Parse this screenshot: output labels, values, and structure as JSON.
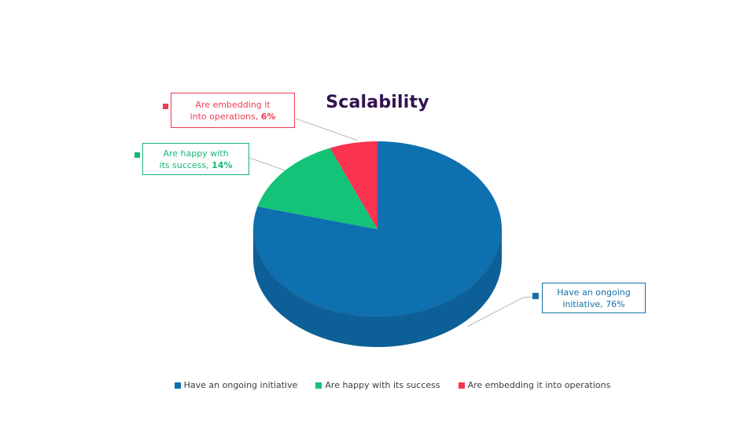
{
  "title": "Scalability",
  "chart_data": {
    "type": "pie",
    "style": "3d",
    "title": "Scalability",
    "labels": [
      "Have an ongoing initiative",
      "Are happy with its success",
      "Are embedding it into operations"
    ],
    "values": [
      76,
      14,
      6
    ],
    "unit": "%",
    "start_angle_deg": 0,
    "direction": "clockwise",
    "colors": [
      "#0f70b0",
      "#13c478",
      "#f93350"
    ],
    "side_color": "#0d6097",
    "legend_position": "bottom",
    "legend": [
      "Have an ongoing initiative",
      "Are happy with its success",
      "Are embedding it into operations"
    ],
    "callouts": [
      {
        "line1": "Have an ongoing",
        "line2_prefix": "initiative, ",
        "pct": "76%",
        "pct_bold": false
      },
      {
        "line1": "Are happy with",
        "line2_prefix": "its success, ",
        "pct": "14%",
        "pct_bold": true
      },
      {
        "line1": "Are embedding it",
        "line2_prefix": "into operations, ",
        "pct": "6%",
        "pct_bold": true
      }
    ]
  },
  "colors": {
    "background": "#ffffff",
    "title_text": "#33114e",
    "legend_text": "#3c3c3c",
    "leader_line": "#b9b9b9",
    "callout_blue": "#1470a8",
    "callout_green": "#18b573",
    "callout_red": "#f23a55"
  }
}
